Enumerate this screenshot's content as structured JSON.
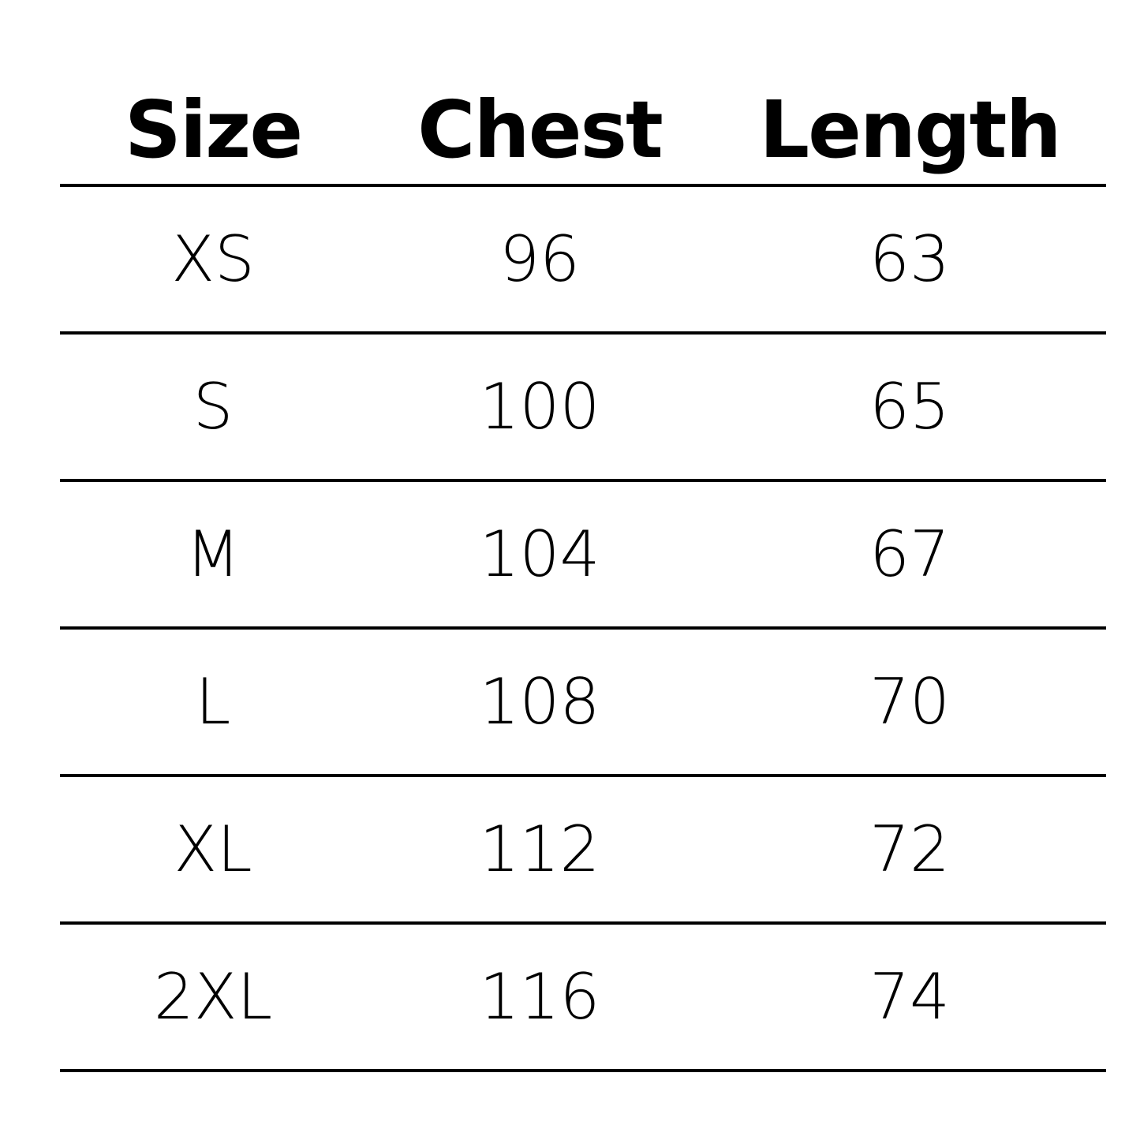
{
  "table": {
    "header": [
      "Size",
      "Chest",
      "Length"
    ],
    "rows": [
      [
        "XS",
        "96",
        "63"
      ],
      [
        "S",
        "100",
        "65"
      ],
      [
        "M",
        "104",
        "67"
      ],
      [
        "L",
        "108",
        "70"
      ],
      [
        "XL",
        "112",
        "72"
      ],
      [
        "2XL",
        "116",
        "74"
      ]
    ]
  }
}
